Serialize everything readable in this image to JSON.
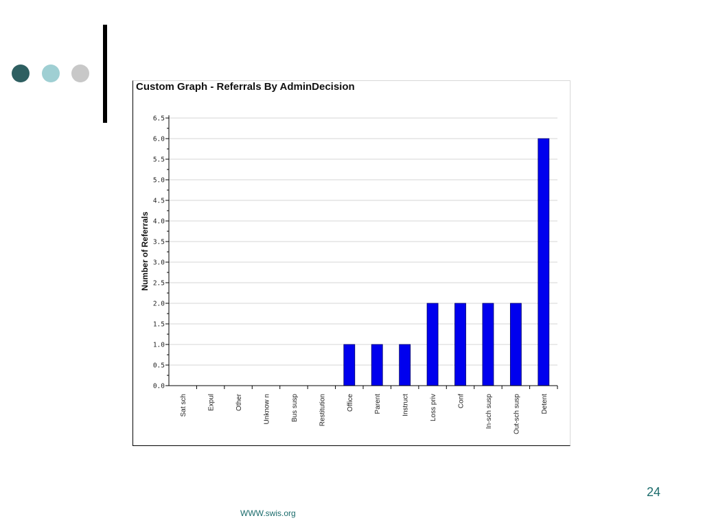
{
  "slide": {
    "page_number": "24",
    "footer_url": "WWW.swis.org",
    "dot_colors": [
      "#2e5f61",
      "#9fcfd3",
      "#c8c8c8"
    ],
    "accent_bar_color": "#000000"
  },
  "chart_data": {
    "type": "bar",
    "title": "Custom Graph - Referrals By AdminDecision",
    "xlabel": "",
    "ylabel": "Number of Referrals",
    "categories": [
      "Sat sch",
      "Expul",
      "Other",
      "Unknow n",
      "Bus susp",
      "Restitution",
      "Office",
      "Parent",
      "Instruct",
      "Loss priv",
      "Conf",
      "In-sch susp",
      "Out-sch susp",
      "Detent"
    ],
    "values": [
      0,
      0,
      0,
      0,
      0,
      0,
      1,
      1,
      1,
      2,
      2,
      2,
      2,
      6
    ],
    "ylim": [
      0,
      6.5
    ],
    "yticks": [
      "0.0",
      "0.5",
      "1.0",
      "1.5",
      "2.0",
      "2.5",
      "3.0",
      "3.5",
      "4.0",
      "4.5",
      "5.0",
      "5.5",
      "6.0",
      "6.5"
    ],
    "grid": true,
    "bar_color": "#0000ee",
    "legend": "none"
  }
}
